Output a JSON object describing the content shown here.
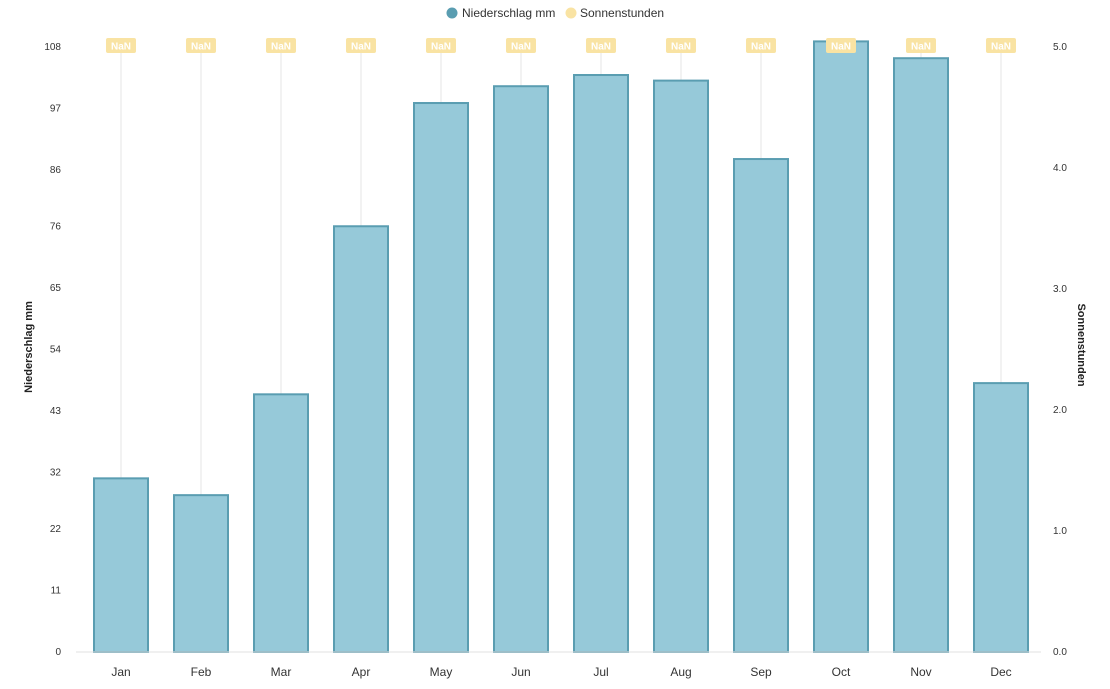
{
  "chart_data": {
    "type": "bar",
    "categories": [
      "Jan",
      "Feb",
      "Mar",
      "Apr",
      "May",
      "Jun",
      "Jul",
      "Aug",
      "Sep",
      "Oct",
      "Nov",
      "Dec"
    ],
    "series": [
      {
        "name": "Niederschlag mm",
        "type": "bar",
        "axis": "left",
        "color": "#96c9d9",
        "border_color": "#5a9db1",
        "values": [
          31,
          28,
          46,
          76,
          98,
          101,
          103,
          102,
          88,
          109,
          106,
          48
        ]
      },
      {
        "name": "Sonnenstunden",
        "type": "line",
        "axis": "right",
        "color": "#f9e3a3",
        "values": [
          null,
          null,
          null,
          null,
          null,
          null,
          null,
          null,
          null,
          null,
          null,
          null
        ],
        "point_labels": [
          "NaN",
          "NaN",
          "NaN",
          "NaN",
          "NaN",
          "NaN",
          "NaN",
          "NaN",
          "NaN",
          "NaN",
          "NaN",
          "NaN"
        ]
      }
    ],
    "y_left": {
      "title": "Niederschlag mm",
      "ticks": [
        "0",
        "11",
        "22",
        "32",
        "43",
        "54",
        "65",
        "76",
        "86",
        "97",
        "108"
      ],
      "ylim": [
        0,
        108
      ]
    },
    "y_right": {
      "title": "Sonnenstunden",
      "ticks": [
        "0.0",
        "1.0",
        "2.0",
        "3.0",
        "4.0",
        "5.0"
      ],
      "ylim": [
        0,
        5
      ]
    },
    "legend": {
      "position": "top",
      "items": [
        {
          "label": "Niederschlag mm",
          "color": "#5a9db1"
        },
        {
          "label": "Sonnenstunden",
          "color": "#f9e3a3"
        }
      ]
    },
    "grid": "vertical-lines-per-category"
  }
}
